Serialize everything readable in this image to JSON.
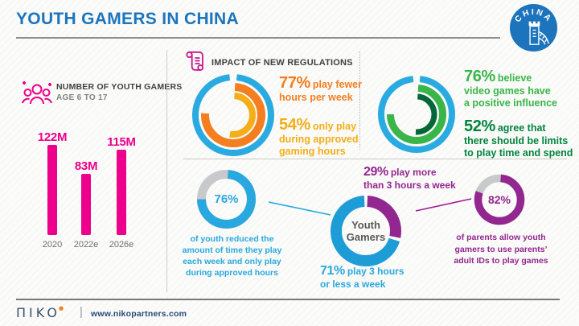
{
  "header": {
    "title": "YOUTH GAMERS IN CHINA",
    "badge_label": "CHINA"
  },
  "left_panel": {
    "heading": "NUMBER OF YOUTH GAMERS",
    "subheading": "AGE 6 TO 17"
  },
  "regulations": {
    "heading": "IMPACT OF NEW REGULATIONS",
    "stat1_pct": "77%",
    "stat1_label": "play fewer\nhours per week",
    "stat2_pct": "54%",
    "stat2_label": "only play\nduring approved\ngaming hours"
  },
  "perception": {
    "stat1_pct": "76%",
    "stat1_label": "believe\nvideo games have\na positive influence",
    "stat2_pct": "52%",
    "stat2_label": "agree that\nthere should be limits\nto play time and spend"
  },
  "reduced": {
    "pct": "76%",
    "label": "of youth reduced the\namount of time they play\neach week and only play\nduring approved hours"
  },
  "youth_gamers": {
    "center_label": "Youth\nGamers",
    "more_pct": "29%",
    "more_label": "play more\nthan 3 hours a week",
    "less_pct": "71%",
    "less_label": "play 3 hours\nor less a week"
  },
  "parents": {
    "pct": "82%",
    "label": "of parents allow youth\ngamers to use parents’\nadult IDs to play games"
  },
  "footer": {
    "logo_brand": "niko",
    "logo_display": "ΠIKO",
    "url": "www.nikopartners.com"
  },
  "colors": {
    "title_blue": "#1C75BC",
    "magenta": "#EC008C",
    "sky_blue": "#29ABE2",
    "orange": "#F47E20",
    "gold": "#F5AD18",
    "green": "#39B54A",
    "dark_green": "#006838",
    "purple": "#92278F",
    "pie_blue": "#1E9CD8",
    "track_gray": "#C8C9CB",
    "text_dark": "#414042",
    "text_gray": "#808285",
    "navy": "#3C5070",
    "accent_dot": "#F58220"
  },
  "chart_data": [
    {
      "type": "bar",
      "title": "NUMBER OF YOUTH GAMERS AGE 6 TO 17",
      "categories": [
        "2020",
        "2022e",
        "2026e"
      ],
      "values": [
        122,
        83,
        115
      ],
      "value_labels": [
        "122M",
        "83M",
        "115M"
      ],
      "unit": "millions of gamers",
      "bar_color": "#EC008C",
      "ylim": [
        0,
        122
      ]
    },
    {
      "type": "donut",
      "title": "IMPACT OF NEW REGULATIONS",
      "rings": [
        {
          "label": "decorative outer ring",
          "value": 100,
          "color": "#29ABE2"
        },
        {
          "label": "play fewer hours per week",
          "value": 77,
          "color": "#F47E20"
        },
        {
          "label": "only play during approved gaming hours",
          "value": 54,
          "color": "#F5AD18"
        }
      ]
    },
    {
      "type": "donut",
      "title": "Attitudes toward regulations",
      "rings": [
        {
          "label": "decorative outer ring",
          "value": 100,
          "color": "#29ABE2"
        },
        {
          "label": "believe video games have a positive influence",
          "value": 76,
          "color": "#39B54A"
        },
        {
          "label": "agree that there should be limits to play time and spend",
          "value": 52,
          "color": "#006838"
        }
      ]
    },
    {
      "type": "donut",
      "title": "Youth who reduced play time",
      "rings": [
        {
          "label": "of youth reduced the amount of time they play each week and only play during approved hours",
          "value": 76,
          "color": "#29A8DF",
          "track": "#C8C9CB"
        }
      ],
      "center_label": "76%"
    },
    {
      "type": "pie",
      "title": "Youth Gamers weekly play time",
      "segments": [
        {
          "label": "play more than 3 hours a week",
          "value": 29,
          "color": "#92278F"
        },
        {
          "label": "play 3 hours or less a week",
          "value": 71,
          "color": "#1E9CD8"
        }
      ],
      "center_label": "Youth Gamers"
    },
    {
      "type": "donut",
      "title": "Parents allowing adult ID use",
      "rings": [
        {
          "label": "of parents allow youth gamers to use parents’ adult IDs to play games",
          "value": 82,
          "color": "#92278F",
          "track": "#C8C9CB"
        }
      ],
      "center_label": "82%"
    }
  ]
}
